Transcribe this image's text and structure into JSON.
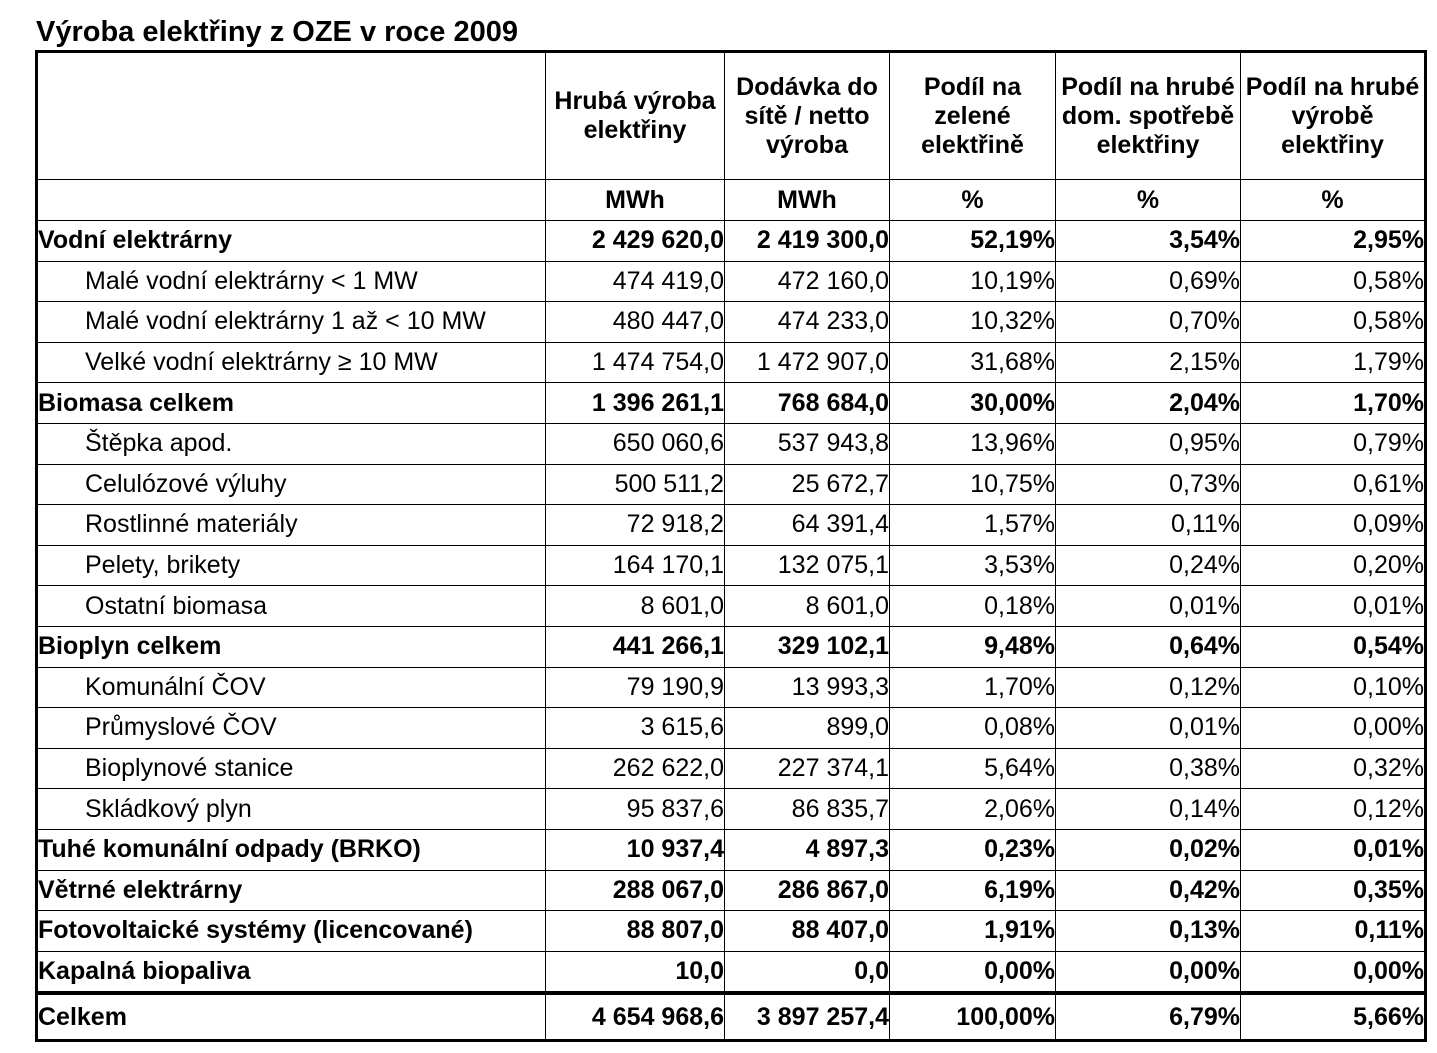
{
  "title": "Výroba elektřiny z OZE v roce 2009",
  "columns": [
    {
      "label": "Hrubá výroba elektřiny",
      "unit": "MWh"
    },
    {
      "label": "Dodávka do sítě / netto výroba",
      "unit": "MWh"
    },
    {
      "label": "Podíl na zelené elektřině",
      "unit": "%"
    },
    {
      "label": "Podíl na hrubé dom. spotřebě elektřiny",
      "unit": "%"
    },
    {
      "label": "Podíl na hrubé výrobě elektřiny",
      "unit": "%"
    }
  ],
  "rows": [
    {
      "label": "Vodní elektrárny",
      "bold": true,
      "values": [
        "2 429 620,0",
        "2 419 300,0",
        "52,19%",
        "3,54%",
        "2,95%"
      ]
    },
    {
      "label": "Malé vodní elektrárny < 1 MW",
      "bold": false,
      "values": [
        "474 419,0",
        "472 160,0",
        "10,19%",
        "0,69%",
        "0,58%"
      ]
    },
    {
      "label": "Malé vodní elektrárny 1 až < 10 MW",
      "bold": false,
      "values": [
        "480 447,0",
        "474 233,0",
        "10,32%",
        "0,70%",
        "0,58%"
      ]
    },
    {
      "label": "Velké vodní elektrárny ≥ 10 MW",
      "bold": false,
      "values": [
        "1 474 754,0",
        "1 472 907,0",
        "31,68%",
        "2,15%",
        "1,79%"
      ]
    },
    {
      "label": "Biomasa celkem",
      "bold": true,
      "values": [
        "1 396 261,1",
        "768 684,0",
        "30,00%",
        "2,04%",
        "1,70%"
      ]
    },
    {
      "label": "Štěpka apod.",
      "bold": false,
      "values": [
        "650 060,6",
        "537 943,8",
        "13,96%",
        "0,95%",
        "0,79%"
      ]
    },
    {
      "label": "Celulózové výluhy",
      "bold": false,
      "values": [
        "500 511,2",
        "25 672,7",
        "10,75%",
        "0,73%",
        "0,61%"
      ]
    },
    {
      "label": "Rostlinné materiály",
      "bold": false,
      "values": [
        "72 918,2",
        "64 391,4",
        "1,57%",
        "0,11%",
        "0,09%"
      ]
    },
    {
      "label": "Pelety, brikety",
      "bold": false,
      "values": [
        "164 170,1",
        "132 075,1",
        "3,53%",
        "0,24%",
        "0,20%"
      ]
    },
    {
      "label": "Ostatní biomasa",
      "bold": false,
      "values": [
        "8 601,0",
        "8 601,0",
        "0,18%",
        "0,01%",
        "0,01%"
      ]
    },
    {
      "label": "Bioplyn celkem",
      "bold": true,
      "values": [
        "441 266,1",
        "329 102,1",
        "9,48%",
        "0,64%",
        "0,54%"
      ]
    },
    {
      "label": "Komunální ČOV",
      "bold": false,
      "values": [
        "79 190,9",
        "13 993,3",
        "1,70%",
        "0,12%",
        "0,10%"
      ]
    },
    {
      "label": "Průmyslové ČOV",
      "bold": false,
      "values": [
        "3 615,6",
        "899,0",
        "0,08%",
        "0,01%",
        "0,00%"
      ]
    },
    {
      "label": "Bioplynové stanice",
      "bold": false,
      "values": [
        "262 622,0",
        "227 374,1",
        "5,64%",
        "0,38%",
        "0,32%"
      ]
    },
    {
      "label": "Skládkový plyn",
      "bold": false,
      "values": [
        "95 837,6",
        "86 835,7",
        "2,06%",
        "0,14%",
        "0,12%"
      ]
    },
    {
      "label": "Tuhé komunální odpady (BRKO)",
      "bold": true,
      "values": [
        "10 937,4",
        "4 897,3",
        "0,23%",
        "0,02%",
        "0,01%"
      ]
    },
    {
      "label": "Větrné elektrárny",
      "bold": true,
      "values": [
        "288 067,0",
        "286 867,0",
        "6,19%",
        "0,42%",
        "0,35%"
      ]
    },
    {
      "label": "Fotovoltaické systémy (licencované)",
      "bold": true,
      "values": [
        "88 807,0",
        "88 407,0",
        "1,91%",
        "0,13%",
        "0,11%"
      ]
    },
    {
      "label": "Kapalná biopaliva",
      "bold": true,
      "values": [
        "10,0",
        "0,0",
        "0,00%",
        "0,00%",
        "0,00%"
      ]
    }
  ],
  "total": {
    "label": "Celkem",
    "values": [
      "4 654 968,6",
      "3 897 257,4",
      "100,00%",
      "6,79%",
      "5,66%"
    ]
  }
}
